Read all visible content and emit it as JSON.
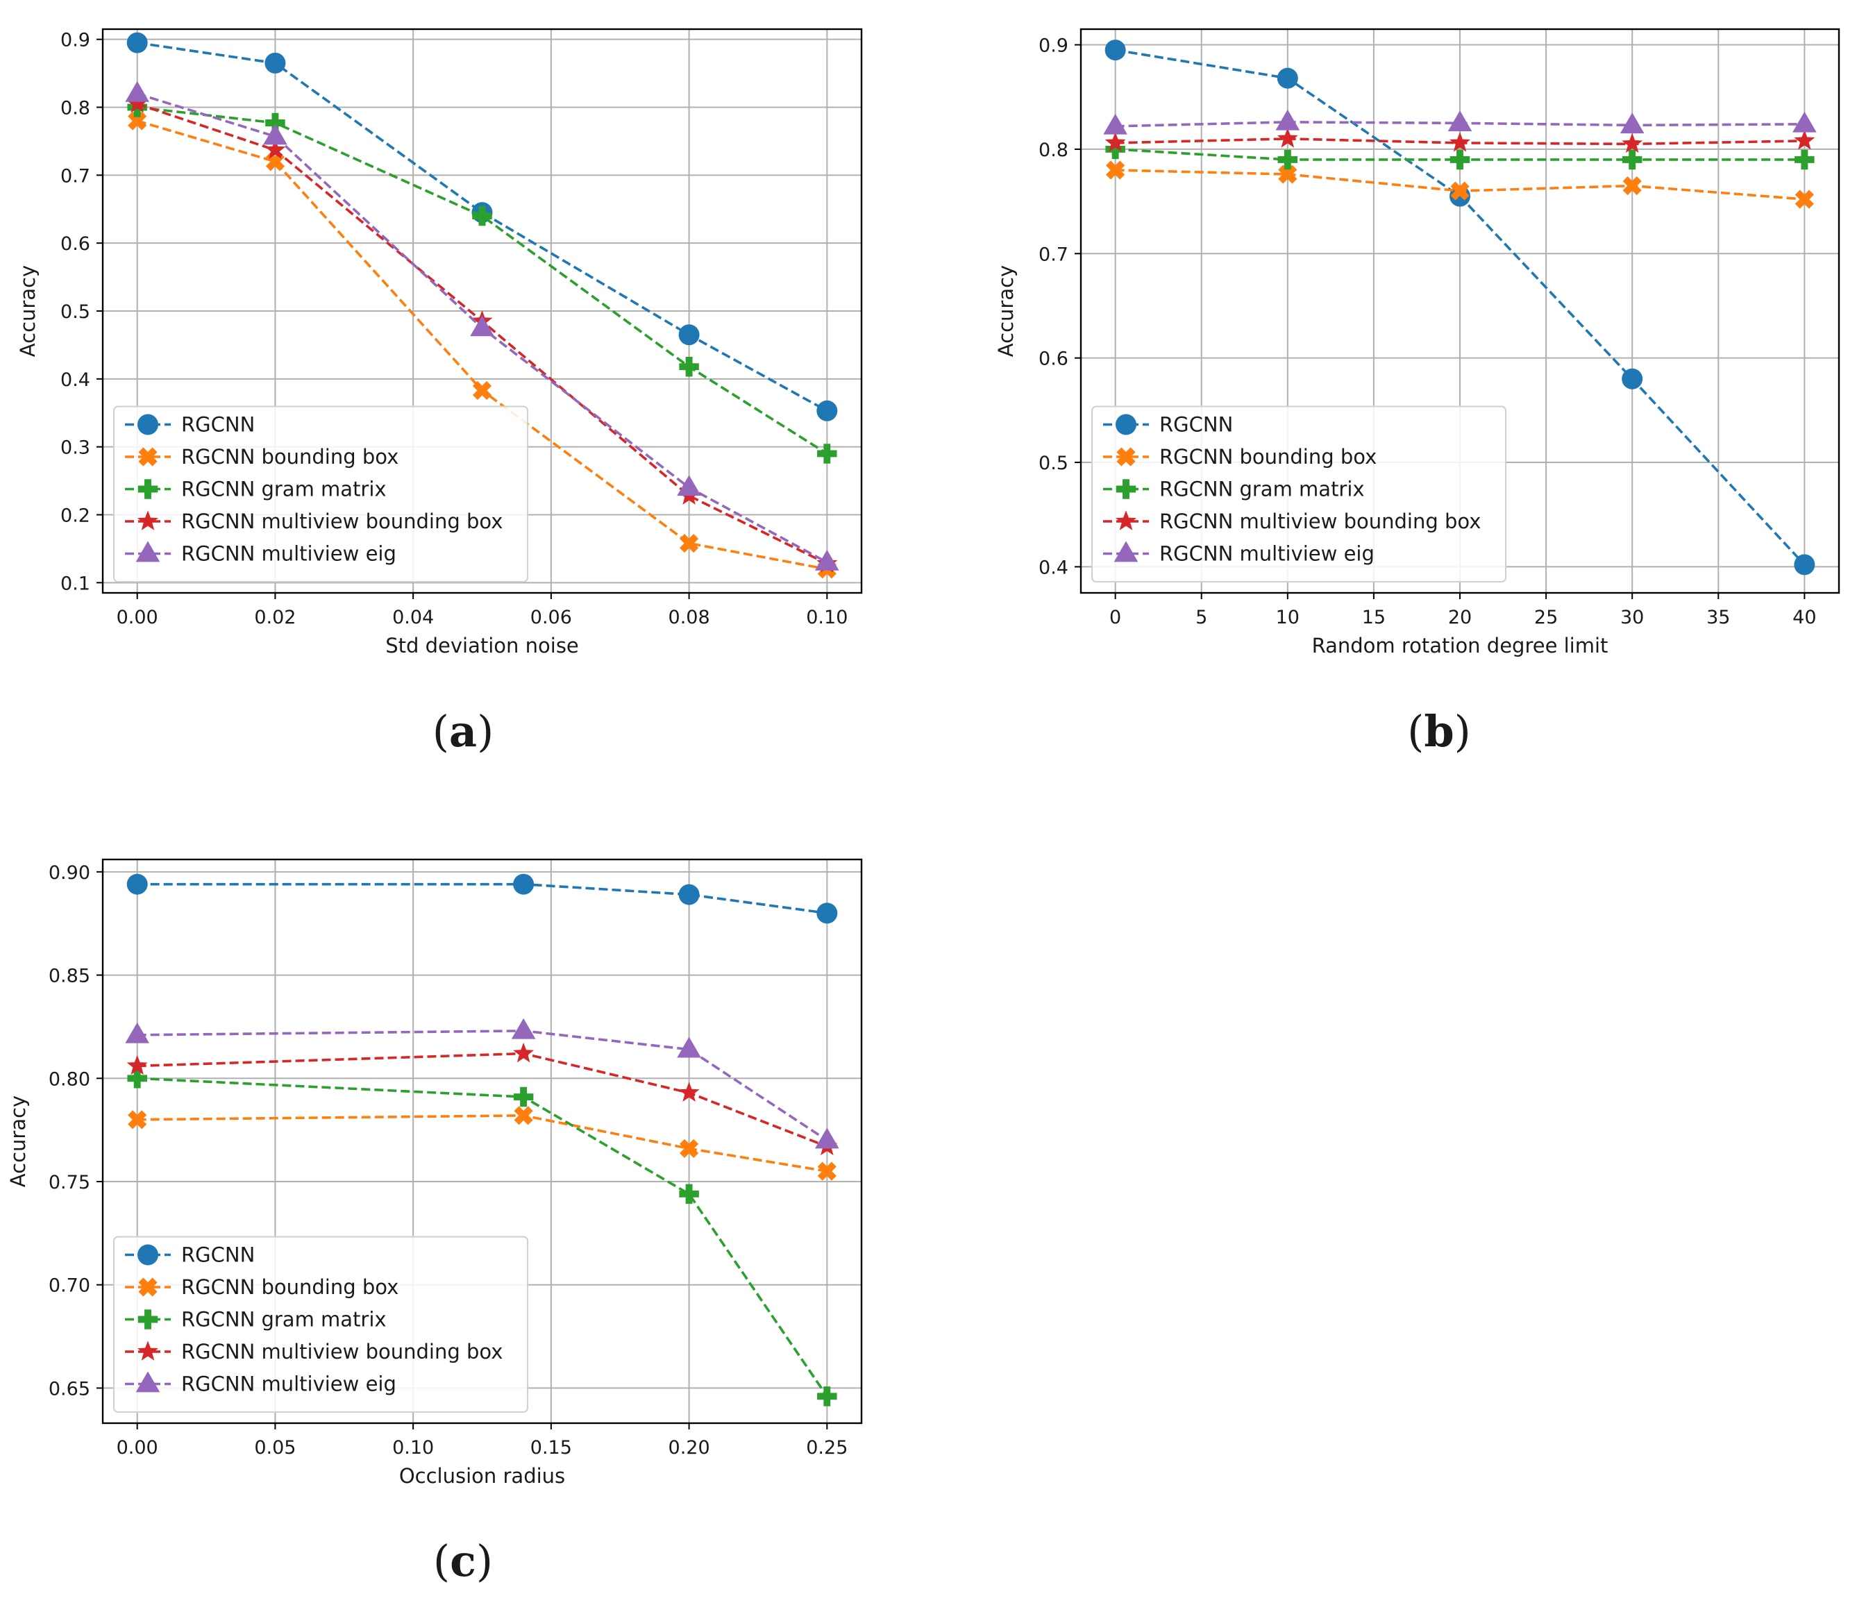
{
  "figure": {
    "title": ""
  },
  "markers": {
    "RGCNN": "circle",
    "RGCNN bounding box": "x-filled",
    "RGCNN gram matrix": "plus-filled",
    "RGCNN multiview bounding box": "star",
    "RGCNN multiview eig": "triangle"
  },
  "colors": {
    "RGCNN": "#1f77b4",
    "RGCNN bounding box": "#ff7f0e",
    "RGCNN gram matrix": "#2ca02c",
    "RGCNN multiview bounding box": "#d62728",
    "RGCNN multiview eig": "#9467bd"
  },
  "chart_data": [
    {
      "type": "line",
      "caption_paren_open": "(",
      "caption_letter": "a",
      "caption_paren_close": ")",
      "title": "",
      "xlabel": "Std deviation noise",
      "ylabel": "Accuracy",
      "xlim": [
        -0.005,
        0.105
      ],
      "ylim": [
        0.085,
        0.915
      ],
      "xticks": [
        0.0,
        0.02,
        0.04,
        0.06,
        0.08,
        0.1
      ],
      "xtick_labels": [
        "0.00",
        "0.02",
        "0.04",
        "0.06",
        "0.08",
        "0.10"
      ],
      "yticks": [
        0.1,
        0.2,
        0.3,
        0.4,
        0.5,
        0.6,
        0.7,
        0.8,
        0.9
      ],
      "ytick_labels": [
        "0.1",
        "0.2",
        "0.3",
        "0.4",
        "0.5",
        "0.6",
        "0.7",
        "0.8",
        "0.9"
      ],
      "grid": true,
      "legend": "lower-left",
      "x": [
        0.0,
        0.02,
        0.05,
        0.08,
        0.1
      ],
      "series": [
        {
          "name": "RGCNN",
          "values": [
            0.895,
            0.865,
            0.645,
            0.465,
            0.353
          ]
        },
        {
          "name": "RGCNN bounding box",
          "values": [
            0.78,
            0.72,
            0.383,
            0.158,
            0.12
          ]
        },
        {
          "name": "RGCNN gram matrix",
          "values": [
            0.8,
            0.777,
            0.64,
            0.418,
            0.29
          ]
        },
        {
          "name": "RGCNN multiview bounding box",
          "values": [
            0.805,
            0.737,
            0.485,
            0.228,
            0.128
          ]
        },
        {
          "name": "RGCNN multiview eig",
          "values": [
            0.82,
            0.757,
            0.475,
            0.24,
            0.13
          ]
        }
      ]
    },
    {
      "type": "line",
      "caption_paren_open": "(",
      "caption_letter": "b",
      "caption_paren_close": ")",
      "title": "",
      "xlabel": "Random rotation degree limit",
      "ylabel": "Accuracy",
      "xlim": [
        -2,
        42
      ],
      "ylim": [
        0.375,
        0.915
      ],
      "xticks": [
        0,
        5,
        10,
        15,
        20,
        25,
        30,
        35,
        40
      ],
      "xtick_labels": [
        "0",
        "5",
        "10",
        "15",
        "20",
        "25",
        "30",
        "35",
        "40"
      ],
      "yticks": [
        0.4,
        0.5,
        0.6,
        0.7,
        0.8,
        0.9
      ],
      "ytick_labels": [
        "0.4",
        "0.5",
        "0.6",
        "0.7",
        "0.8",
        "0.9"
      ],
      "grid": true,
      "legend": "lower-left",
      "x": [
        0,
        10,
        20,
        30,
        40
      ],
      "series": [
        {
          "name": "RGCNN",
          "values": [
            0.895,
            0.868,
            0.755,
            0.58,
            0.402
          ]
        },
        {
          "name": "RGCNN bounding box",
          "values": [
            0.78,
            0.776,
            0.76,
            0.765,
            0.752
          ]
        },
        {
          "name": "RGCNN gram matrix",
          "values": [
            0.8,
            0.79,
            0.79,
            0.79,
            0.79
          ]
        },
        {
          "name": "RGCNN multiview bounding box",
          "values": [
            0.806,
            0.81,
            0.806,
            0.805,
            0.808
          ]
        },
        {
          "name": "RGCNN multiview eig",
          "values": [
            0.822,
            0.826,
            0.825,
            0.823,
            0.824
          ]
        }
      ]
    },
    {
      "type": "line",
      "caption_paren_open": "(",
      "caption_letter": "c",
      "caption_paren_close": ")",
      "title": "",
      "xlabel": "Occlusion radius",
      "ylabel": "Accuracy",
      "xlim": [
        -0.0125,
        0.2625
      ],
      "ylim": [
        0.633,
        0.906
      ],
      "xticks": [
        0.0,
        0.05,
        0.1,
        0.15,
        0.2,
        0.25
      ],
      "xtick_labels": [
        "0.00",
        "0.05",
        "0.10",
        "0.15",
        "0.20",
        "0.25"
      ],
      "yticks": [
        0.65,
        0.7,
        0.75,
        0.8,
        0.85,
        0.9
      ],
      "ytick_labels": [
        "0.65",
        "0.70",
        "0.75",
        "0.80",
        "0.85",
        "0.90"
      ],
      "grid": true,
      "legend": "lower-left",
      "x": [
        0.0,
        0.14,
        0.2,
        0.25
      ],
      "series": [
        {
          "name": "RGCNN",
          "values": [
            0.894,
            0.894,
            0.889,
            0.88
          ]
        },
        {
          "name": "RGCNN bounding box",
          "values": [
            0.78,
            0.782,
            0.766,
            0.755
          ]
        },
        {
          "name": "RGCNN gram matrix",
          "values": [
            0.8,
            0.791,
            0.744,
            0.646
          ]
        },
        {
          "name": "RGCNN multiview bounding box",
          "values": [
            0.806,
            0.812,
            0.793,
            0.767
          ]
        },
        {
          "name": "RGCNN multiview eig",
          "values": [
            0.821,
            0.823,
            0.814,
            0.77
          ]
        }
      ]
    }
  ]
}
